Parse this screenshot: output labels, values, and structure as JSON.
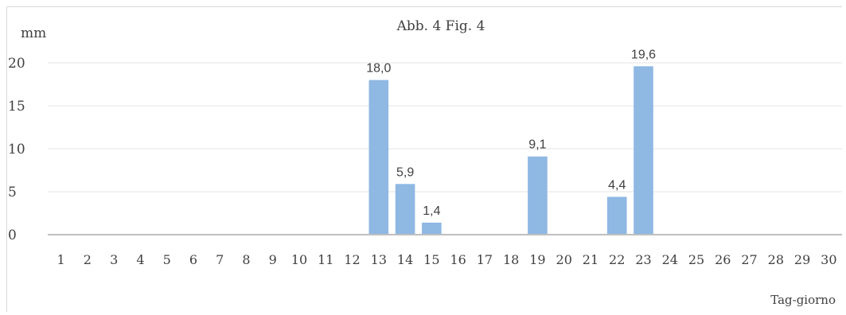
{
  "chart_data": {
    "type": "bar",
    "title": "Abb. 4   Fig. 4",
    "ylabel": "mm",
    "xlabel": "Tag-giorno",
    "ylim": [
      0,
      20
    ],
    "yticks": [
      0,
      5,
      10,
      15,
      20
    ],
    "grid": true,
    "categories": [
      "1",
      "2",
      "3",
      "4",
      "5",
      "6",
      "7",
      "8",
      "9",
      "10",
      "11",
      "12",
      "13",
      "14",
      "15",
      "16",
      "17",
      "18",
      "19",
      "20",
      "21",
      "22",
      "23",
      "24",
      "25",
      "26",
      "27",
      "28",
      "29",
      "30"
    ],
    "values": [
      0,
      0,
      0,
      0,
      0,
      0,
      0,
      0,
      0,
      0,
      0,
      0,
      18.0,
      5.9,
      1.4,
      0,
      0,
      0,
      9.1,
      0,
      0,
      4.4,
      19.6,
      0,
      0,
      0,
      0,
      0,
      0,
      0
    ],
    "data_labels": {
      "13": "18,0",
      "14": "5,9",
      "15": "1,4",
      "19": "9,1",
      "22": "4,4",
      "23": "19,6"
    },
    "bar_color": "#8fb8e3",
    "axis_color": "#bfbfbf",
    "grid_color": "#e6e6e6"
  }
}
